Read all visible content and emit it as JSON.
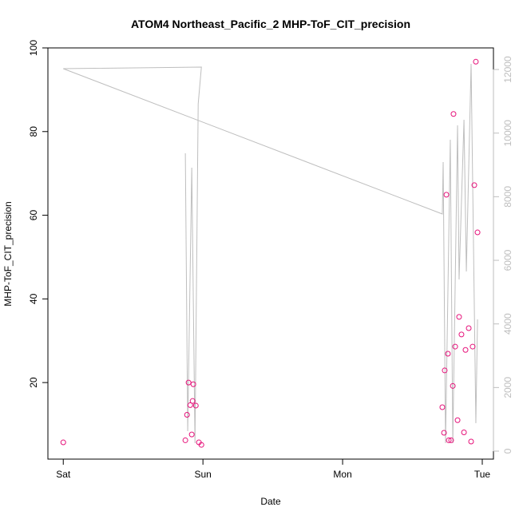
{
  "chart_data": {
    "type": "scatter",
    "title": "ATOM4 Northeast_Pacific_2 MHP-ToF_CIT_precision",
    "xlabel": "Date",
    "ylabel": "MHP-ToF_CIT_precision",
    "xlim": [
      -0.11,
      3.08
    ],
    "xticks": [
      {
        "value": 0,
        "label": "Sat"
      },
      {
        "value": 1,
        "label": "Sun"
      },
      {
        "value": 2,
        "label": "Mon"
      },
      {
        "value": 3,
        "label": "Tue"
      }
    ],
    "ylim": [
      1.7,
      100
    ],
    "yticks": [
      20,
      40,
      60,
      80,
      100
    ],
    "y2lim": [
      -251,
      12679
    ],
    "y2ticks": [
      0,
      2000,
      4000,
      6000,
      8000,
      10000,
      12000
    ],
    "y2color": "#bebebe",
    "series": [
      {
        "type": "scatter",
        "color": "#e6127a",
        "x": [
          0,
          0.874,
          0.897,
          0.886,
          0.909,
          0.92,
          0.926,
          0.931,
          0.949,
          0.971,
          0.989,
          2.714,
          2.726,
          2.731,
          2.743,
          2.754,
          2.76,
          2.777,
          2.789,
          2.794,
          2.806,
          2.823,
          2.834,
          2.851,
          2.869,
          2.88,
          2.903,
          2.92,
          2.931,
          2.943,
          2.954,
          2.966
        ],
        "values": [
          5.7,
          6.2,
          20.0,
          12.3,
          14.6,
          7.6,
          15.6,
          19.6,
          14.5,
          5.7,
          5.1,
          14.1,
          8.0,
          22.9,
          64.9,
          26.9,
          6.2,
          6.2,
          19.2,
          84.2,
          28.6,
          11.0,
          35.7,
          31.5,
          8.1,
          27.8,
          33.0,
          5.9,
          28.6,
          67.2,
          96.7,
          55.9
        ]
      },
      {
        "type": "line",
        "color": "#bebebe",
        "axis": "y2",
        "x": [
          0.874,
          0.891,
          0.92,
          0.943,
          0.966,
          0.989,
          0,
          2.714,
          2.72,
          2.737,
          2.771,
          2.789,
          2.823,
          2.834,
          2.869,
          2.886,
          2.92,
          2.954,
          2.966
        ],
        "values": [
          9365,
          628,
          8913,
          251,
          10921,
          12077,
          12026,
          7457,
          9089,
          251,
          9792,
          251,
          10244,
          5398,
          10419,
          5649,
          12177,
          879,
          4143
        ]
      }
    ]
  }
}
